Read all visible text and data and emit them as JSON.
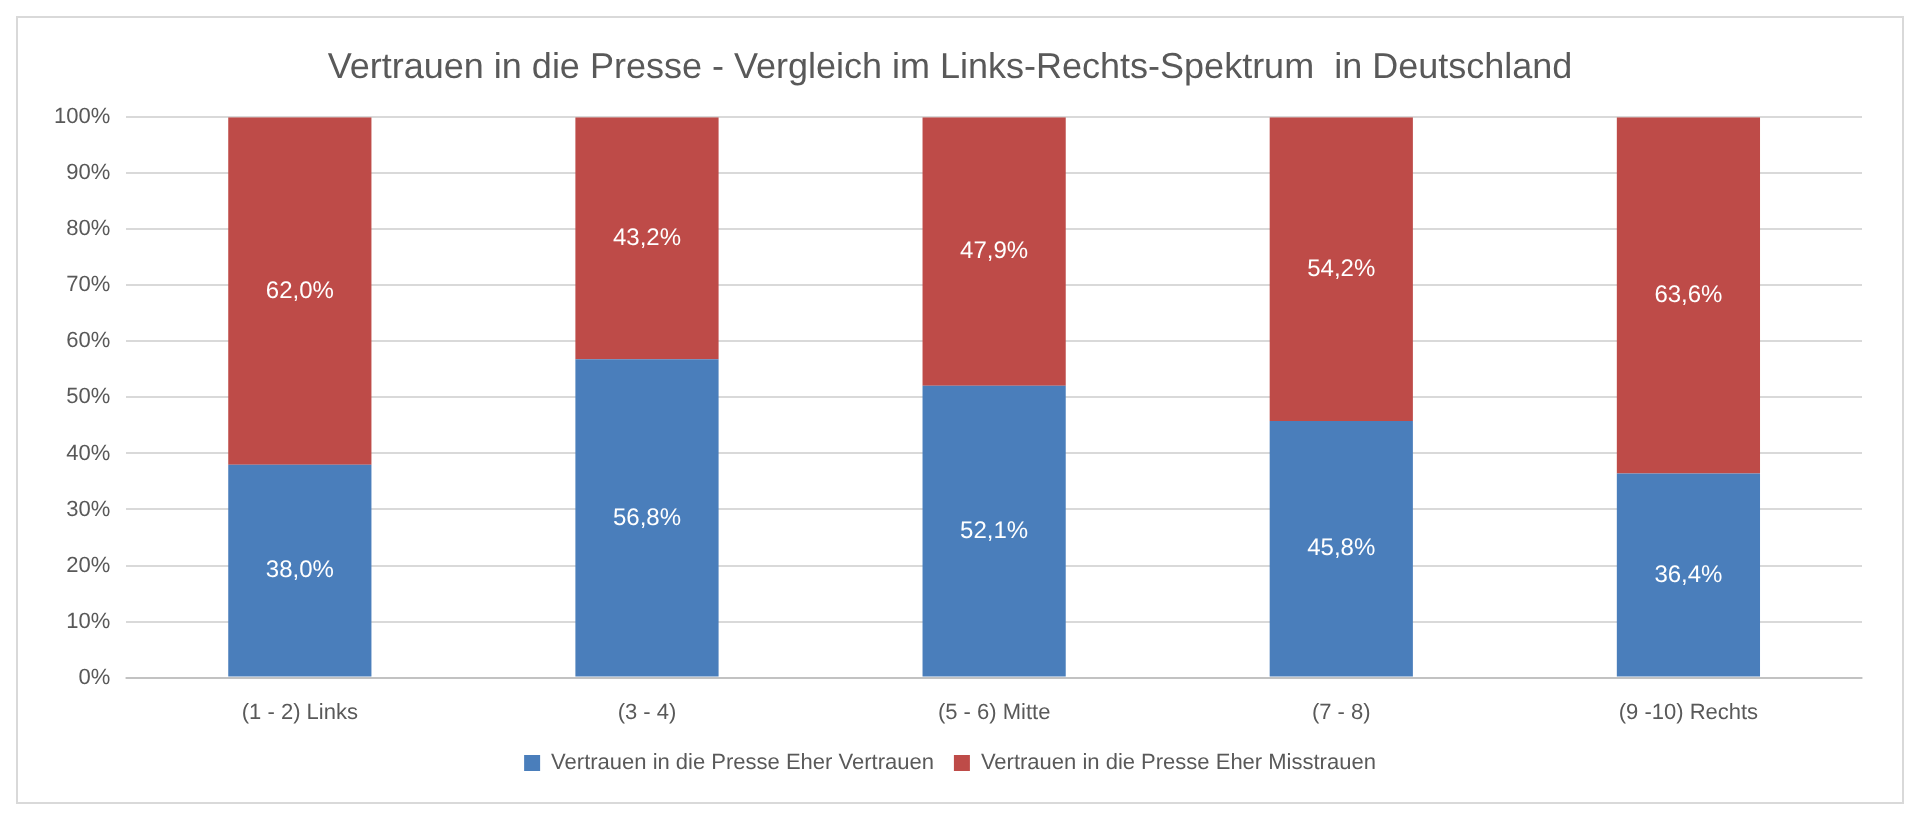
{
  "chart_data": {
    "type": "bar",
    "title": "Vertrauen in die Presse - Vergleich im Links-Rechts-Spektrum  in Deutschland",
    "categories": [
      "(1 - 2) Links",
      "(3 - 4)",
      "(5 - 6) Mitte",
      "(7 - 8)",
      "(9 -10) Rechts"
    ],
    "stacked": true,
    "ylim": [
      0,
      100
    ],
    "yticks": [
      {
        "value": 0,
        "label": "0%"
      },
      {
        "value": 10,
        "label": "10%"
      },
      {
        "value": 20,
        "label": "20%"
      },
      {
        "value": 30,
        "label": "30%"
      },
      {
        "value": 40,
        "label": "40%"
      },
      {
        "value": 50,
        "label": "50%"
      },
      {
        "value": 60,
        "label": "60%"
      },
      {
        "value": 70,
        "label": "70%"
      },
      {
        "value": 80,
        "label": "80%"
      },
      {
        "value": 90,
        "label": "90%"
      },
      {
        "value": 100,
        "label": "100%"
      }
    ],
    "series": [
      {
        "name": "Vertrauen in die Presse Eher Vertrauen",
        "color": "#4a7ebb",
        "values": [
          38.0,
          56.8,
          52.1,
          45.8,
          36.4
        ],
        "value_labels": [
          "38,0%",
          "56,8%",
          "52,1%",
          "45,8%",
          "36,4%"
        ]
      },
      {
        "name": "Vertrauen in die Presse Eher Misstrauen",
        "color": "#be4b48",
        "values": [
          62.0,
          43.2,
          47.9,
          54.2,
          63.6
        ],
        "value_labels": [
          "62,0%",
          "43,2%",
          "47,9%",
          "54,2%",
          "63,6%"
        ]
      }
    ],
    "grid": "y",
    "legend": "bottom"
  }
}
